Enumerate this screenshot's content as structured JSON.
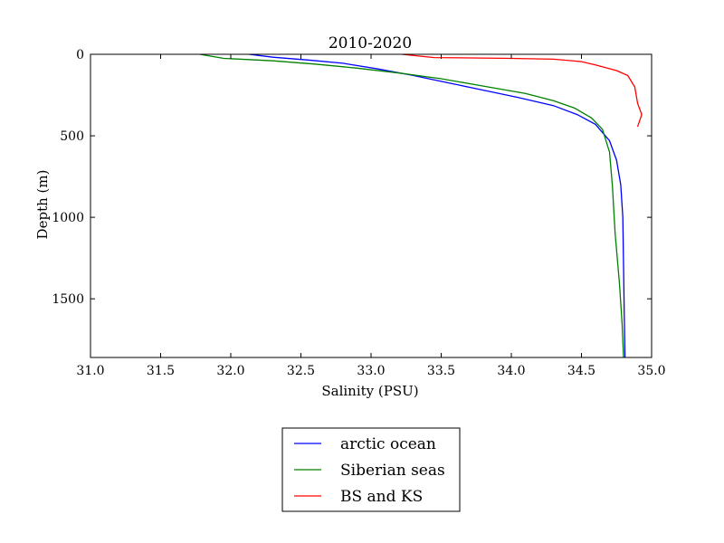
{
  "chart_data": {
    "type": "line",
    "title": "2010-2020",
    "xlabel": "Salinity (PSU)",
    "ylabel": "Depth (m)",
    "xlim": [
      31.0,
      35.0
    ],
    "ylim": [
      0,
      1860
    ],
    "y_inverted": true,
    "grid": false,
    "legend_position": "bottom-center, below plot",
    "x_ticks": [
      "31.0",
      "31.5",
      "32.0",
      "32.5",
      "33.0",
      "33.5",
      "34.0",
      "34.5",
      "35.0"
    ],
    "x_tick_values": [
      31.0,
      31.5,
      32.0,
      32.5,
      33.0,
      33.5,
      34.0,
      34.5,
      35.0
    ],
    "y_ticks": [
      "0",
      "500",
      "1000",
      "1500"
    ],
    "y_tick_values": [
      0,
      500,
      1000,
      1500
    ],
    "series": [
      {
        "name": "arctic ocean",
        "color": "#0000ff",
        "points": [
          [
            32.13,
            0
          ],
          [
            32.3,
            18
          ],
          [
            32.55,
            35
          ],
          [
            32.8,
            55
          ],
          [
            33.05,
            90
          ],
          [
            33.3,
            130
          ],
          [
            33.55,
            175
          ],
          [
            33.8,
            220
          ],
          [
            34.05,
            265
          ],
          [
            34.3,
            315
          ],
          [
            34.47,
            370
          ],
          [
            34.6,
            430
          ],
          [
            34.7,
            530
          ],
          [
            34.75,
            650
          ],
          [
            34.78,
            800
          ],
          [
            34.795,
            1000
          ],
          [
            34.8,
            1300
          ],
          [
            34.805,
            1600
          ],
          [
            34.81,
            1860
          ]
        ]
      },
      {
        "name": "Siberian seas",
        "color": "#008000",
        "points": [
          [
            31.78,
            0
          ],
          [
            31.95,
            25
          ],
          [
            32.3,
            40
          ],
          [
            32.6,
            60
          ],
          [
            32.9,
            85
          ],
          [
            33.2,
            115
          ],
          [
            33.5,
            150
          ],
          [
            33.8,
            195
          ],
          [
            34.1,
            240
          ],
          [
            34.3,
            285
          ],
          [
            34.45,
            330
          ],
          [
            34.57,
            390
          ],
          [
            34.65,
            460
          ],
          [
            34.7,
            600
          ],
          [
            34.72,
            800
          ],
          [
            34.74,
            1100
          ],
          [
            34.77,
            1400
          ],
          [
            34.79,
            1650
          ],
          [
            34.8,
            1860
          ]
        ]
      },
      {
        "name": "BS and KS",
        "color": "#ff0000",
        "points": [
          [
            33.22,
            0
          ],
          [
            33.45,
            20
          ],
          [
            34.0,
            25
          ],
          [
            34.3,
            30
          ],
          [
            34.5,
            45
          ],
          [
            34.6,
            65
          ],
          [
            34.75,
            100
          ],
          [
            34.83,
            130
          ],
          [
            34.88,
            200
          ],
          [
            34.9,
            300
          ],
          [
            34.93,
            370
          ],
          [
            34.9,
            445
          ]
        ]
      }
    ]
  }
}
